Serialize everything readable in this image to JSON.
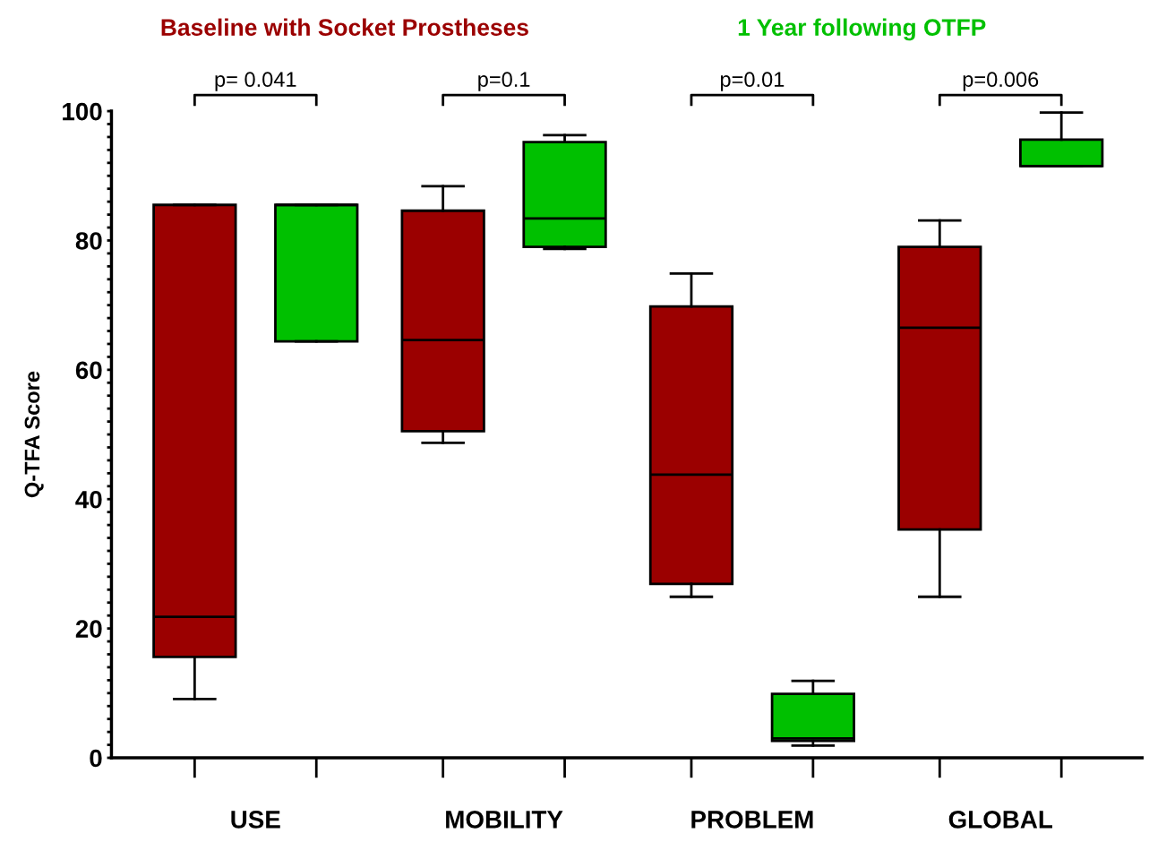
{
  "chart_data": {
    "type": "box",
    "ylabel": "Q-TFA Score",
    "categories": [
      "USE",
      "MOBILITY",
      "PROBLEM",
      "GLOBAL"
    ],
    "series": [
      {
        "name": "Baseline with Socket Prostheses",
        "color": "#9b0000",
        "boxes": [
          {
            "low": 9.1,
            "q1": 15.6,
            "median": 21.8,
            "q3": 85.5,
            "high": 85.5
          },
          {
            "low": 48.7,
            "q1": 50.5,
            "median": 64.6,
            "q3": 84.6,
            "high": 88.4
          },
          {
            "low": 24.9,
            "q1": 26.9,
            "median": 43.8,
            "q3": 69.8,
            "high": 74.9
          },
          {
            "low": 24.9,
            "q1": 35.3,
            "median": 66.5,
            "q3": 79.0,
            "high": 83.1
          }
        ]
      },
      {
        "name": "1 Year following OTFP",
        "color": "#00c000",
        "boxes": [
          {
            "low": 64.4,
            "q1": 64.4,
            "median": 85.5,
            "q3": 85.5,
            "high": 85.5
          },
          {
            "low": 78.7,
            "q1": 79.0,
            "median": 83.4,
            "q3": 95.2,
            "high": 96.3
          },
          {
            "low": 1.9,
            "q1": 2.6,
            "median": 3.0,
            "q3": 9.9,
            "high": 11.9
          },
          {
            "low": 91.5,
            "q1": 91.5,
            "median": 91.5,
            "q3": 95.6,
            "high": 99.8
          }
        ]
      }
    ],
    "ylim": [
      0,
      100
    ],
    "yticks": [
      0,
      {
        "value": 2,
        "label": null
      },
      {
        "value": 4,
        "label": null
      },
      {
        "value": 6,
        "label": null
      },
      {
        "value": 8,
        "label": null
      },
      {
        "value": 10,
        "label": null
      },
      {
        "value": 12,
        "label": null
      },
      {
        "value": 14,
        "label": null
      },
      {
        "value": 16,
        "label": null
      },
      {
        "value": 18,
        "label": null
      },
      20,
      {
        "value": 22,
        "label": null
      },
      {
        "value": 24,
        "label": null
      },
      {
        "value": 26,
        "label": null
      },
      {
        "value": 28,
        "label": null
      },
      {
        "value": 30,
        "label": null
      },
      {
        "value": 32,
        "label": null
      },
      {
        "value": 34,
        "label": null
      },
      {
        "value": 36,
        "label": null
      },
      {
        "value": 38,
        "label": null
      },
      40,
      {
        "value": 42,
        "label": null
      },
      {
        "value": 44,
        "label": null
      },
      {
        "value": 46,
        "label": null
      },
      {
        "value": 48,
        "label": null
      },
      {
        "value": 50,
        "label": null
      },
      {
        "value": 52,
        "label": null
      },
      {
        "value": 54,
        "label": null
      },
      {
        "value": 56,
        "label": null
      },
      {
        "value": 58,
        "label": null
      },
      60,
      {
        "value": 62,
        "label": null
      },
      {
        "value": 64,
        "label": null
      },
      {
        "value": 66,
        "label": null
      },
      {
        "value": 68,
        "label": null
      },
      {
        "value": 70,
        "label": null
      },
      {
        "value": 72,
        "label": null
      },
      {
        "value": 74,
        "label": null
      },
      {
        "value": 76,
        "label": null
      },
      {
        "value": 78,
        "label": null
      },
      80,
      {
        "value": 82,
        "label": null
      },
      {
        "value": 84,
        "label": null
      },
      {
        "value": 86,
        "label": null
      },
      {
        "value": 88,
        "label": null
      },
      {
        "value": 90,
        "label": null
      },
      {
        "value": 92,
        "label": null
      },
      {
        "value": 94,
        "label": null
      },
      {
        "value": 96,
        "label": null
      },
      {
        "value": 98,
        "label": null
      },
      100
    ],
    "annotations": [
      "p= 0.041",
      "p=0.1",
      "p=0.01",
      "p=0.006"
    ],
    "grid": false
  }
}
